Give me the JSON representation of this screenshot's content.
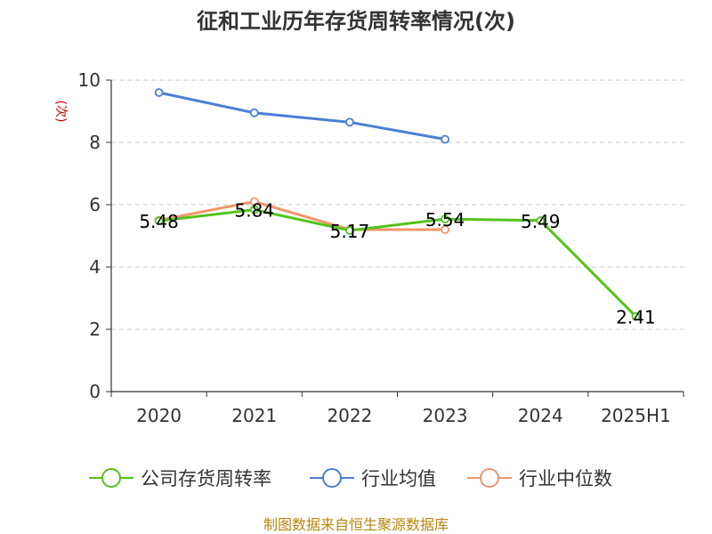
{
  "chart_data": {
    "type": "line",
    "title": "征和工业历年存货周转率情况(次)",
    "ylabel": "(次)",
    "categories": [
      "2020",
      "2021",
      "2022",
      "2023",
      "2024",
      "2025H1"
    ],
    "ylim": [
      0,
      10
    ],
    "yticks": [
      0,
      2,
      4,
      6,
      8,
      10
    ],
    "grid": true,
    "legend_position": "bottom",
    "series": [
      {
        "name": "公司存货周转率",
        "color": "#52c41a",
        "values": [
          5.48,
          5.84,
          5.17,
          5.54,
          5.49,
          2.41
        ],
        "show_labels": true
      },
      {
        "name": "行业均值",
        "color": "#4a7fd4",
        "values": [
          9.6,
          8.95,
          8.65,
          8.1,
          null,
          null
        ],
        "show_labels": false
      },
      {
        "name": "行业中位数",
        "color": "#f0956a",
        "values": [
          5.5,
          6.1,
          5.2,
          5.2,
          null,
          null
        ],
        "show_labels": false
      }
    ],
    "data_labels": [
      "5.48",
      "5.84",
      "5.17",
      "5.54",
      "5.49",
      "2.41"
    ]
  },
  "footer": "制图数据来自恒生聚源数据库"
}
